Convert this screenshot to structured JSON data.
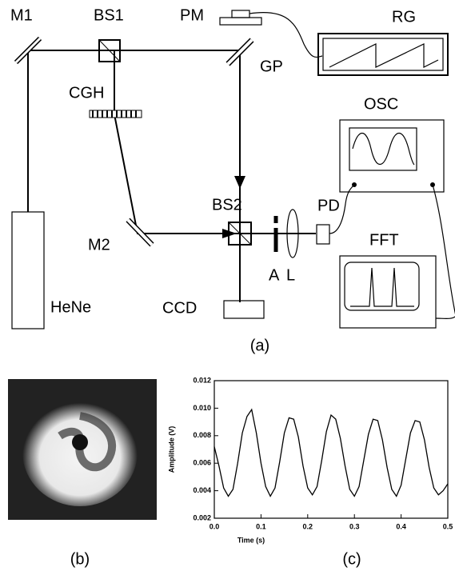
{
  "diagram": {
    "caption": "(a)",
    "labels": [
      "M1",
      "BS1",
      "PM",
      "RG",
      "GP",
      "CGH",
      "OSC",
      "BS2",
      "PD",
      "FFT",
      "M2",
      "A",
      "L",
      "HeNe",
      "CCD"
    ]
  },
  "image_caption": "(b)",
  "chart_data": {
    "type": "line",
    "caption": "(c)",
    "x_label": "Time (s)",
    "y_label": "Amplitude (V)",
    "x": [
      0,
      0.01,
      0.02,
      0.03,
      0.04,
      0.05,
      0.06,
      0.07,
      0.08,
      0.09,
      0.1,
      0.11,
      0.12,
      0.13,
      0.14,
      0.15,
      0.16,
      0.17,
      0.18,
      0.19,
      0.2,
      0.21,
      0.22,
      0.23,
      0.24,
      0.25,
      0.26,
      0.27,
      0.28,
      0.29,
      0.3,
      0.31,
      0.32,
      0.33,
      0.34,
      0.35,
      0.36,
      0.37,
      0.38,
      0.39,
      0.4,
      0.41,
      0.42,
      0.43,
      0.44,
      0.45,
      0.46,
      0.47,
      0.48,
      0.49,
      0.5
    ],
    "values": [
      0.0072,
      0.0058,
      0.0042,
      0.0036,
      0.0041,
      0.006,
      0.0082,
      0.0094,
      0.0099,
      0.0082,
      0.006,
      0.0043,
      0.0036,
      0.0042,
      0.0061,
      0.0082,
      0.0093,
      0.0092,
      0.0079,
      0.0058,
      0.0042,
      0.0037,
      0.0043,
      0.0062,
      0.0083,
      0.0095,
      0.0092,
      0.0078,
      0.0058,
      0.0041,
      0.0036,
      0.0043,
      0.0062,
      0.0081,
      0.0092,
      0.0091,
      0.0077,
      0.0057,
      0.0041,
      0.0036,
      0.0044,
      0.0063,
      0.0082,
      0.0091,
      0.009,
      0.0077,
      0.0057,
      0.0042,
      0.0037,
      0.004,
      0.0045
    ],
    "color": "#000000",
    "xlim": [
      0,
      0.5
    ],
    "xticks": [
      {
        "value": 0,
        "label": "0.0"
      },
      0.1,
      0.2,
      0.3,
      0.4,
      0.5
    ],
    "ylim": [
      0.002,
      0.012
    ],
    "yticks": [
      0.002,
      0.004,
      0.006,
      0.008,
      {
        "value": 0.01,
        "label": "0.010"
      },
      {
        "value": 0.012,
        "label": "0.012"
      }
    ]
  }
}
